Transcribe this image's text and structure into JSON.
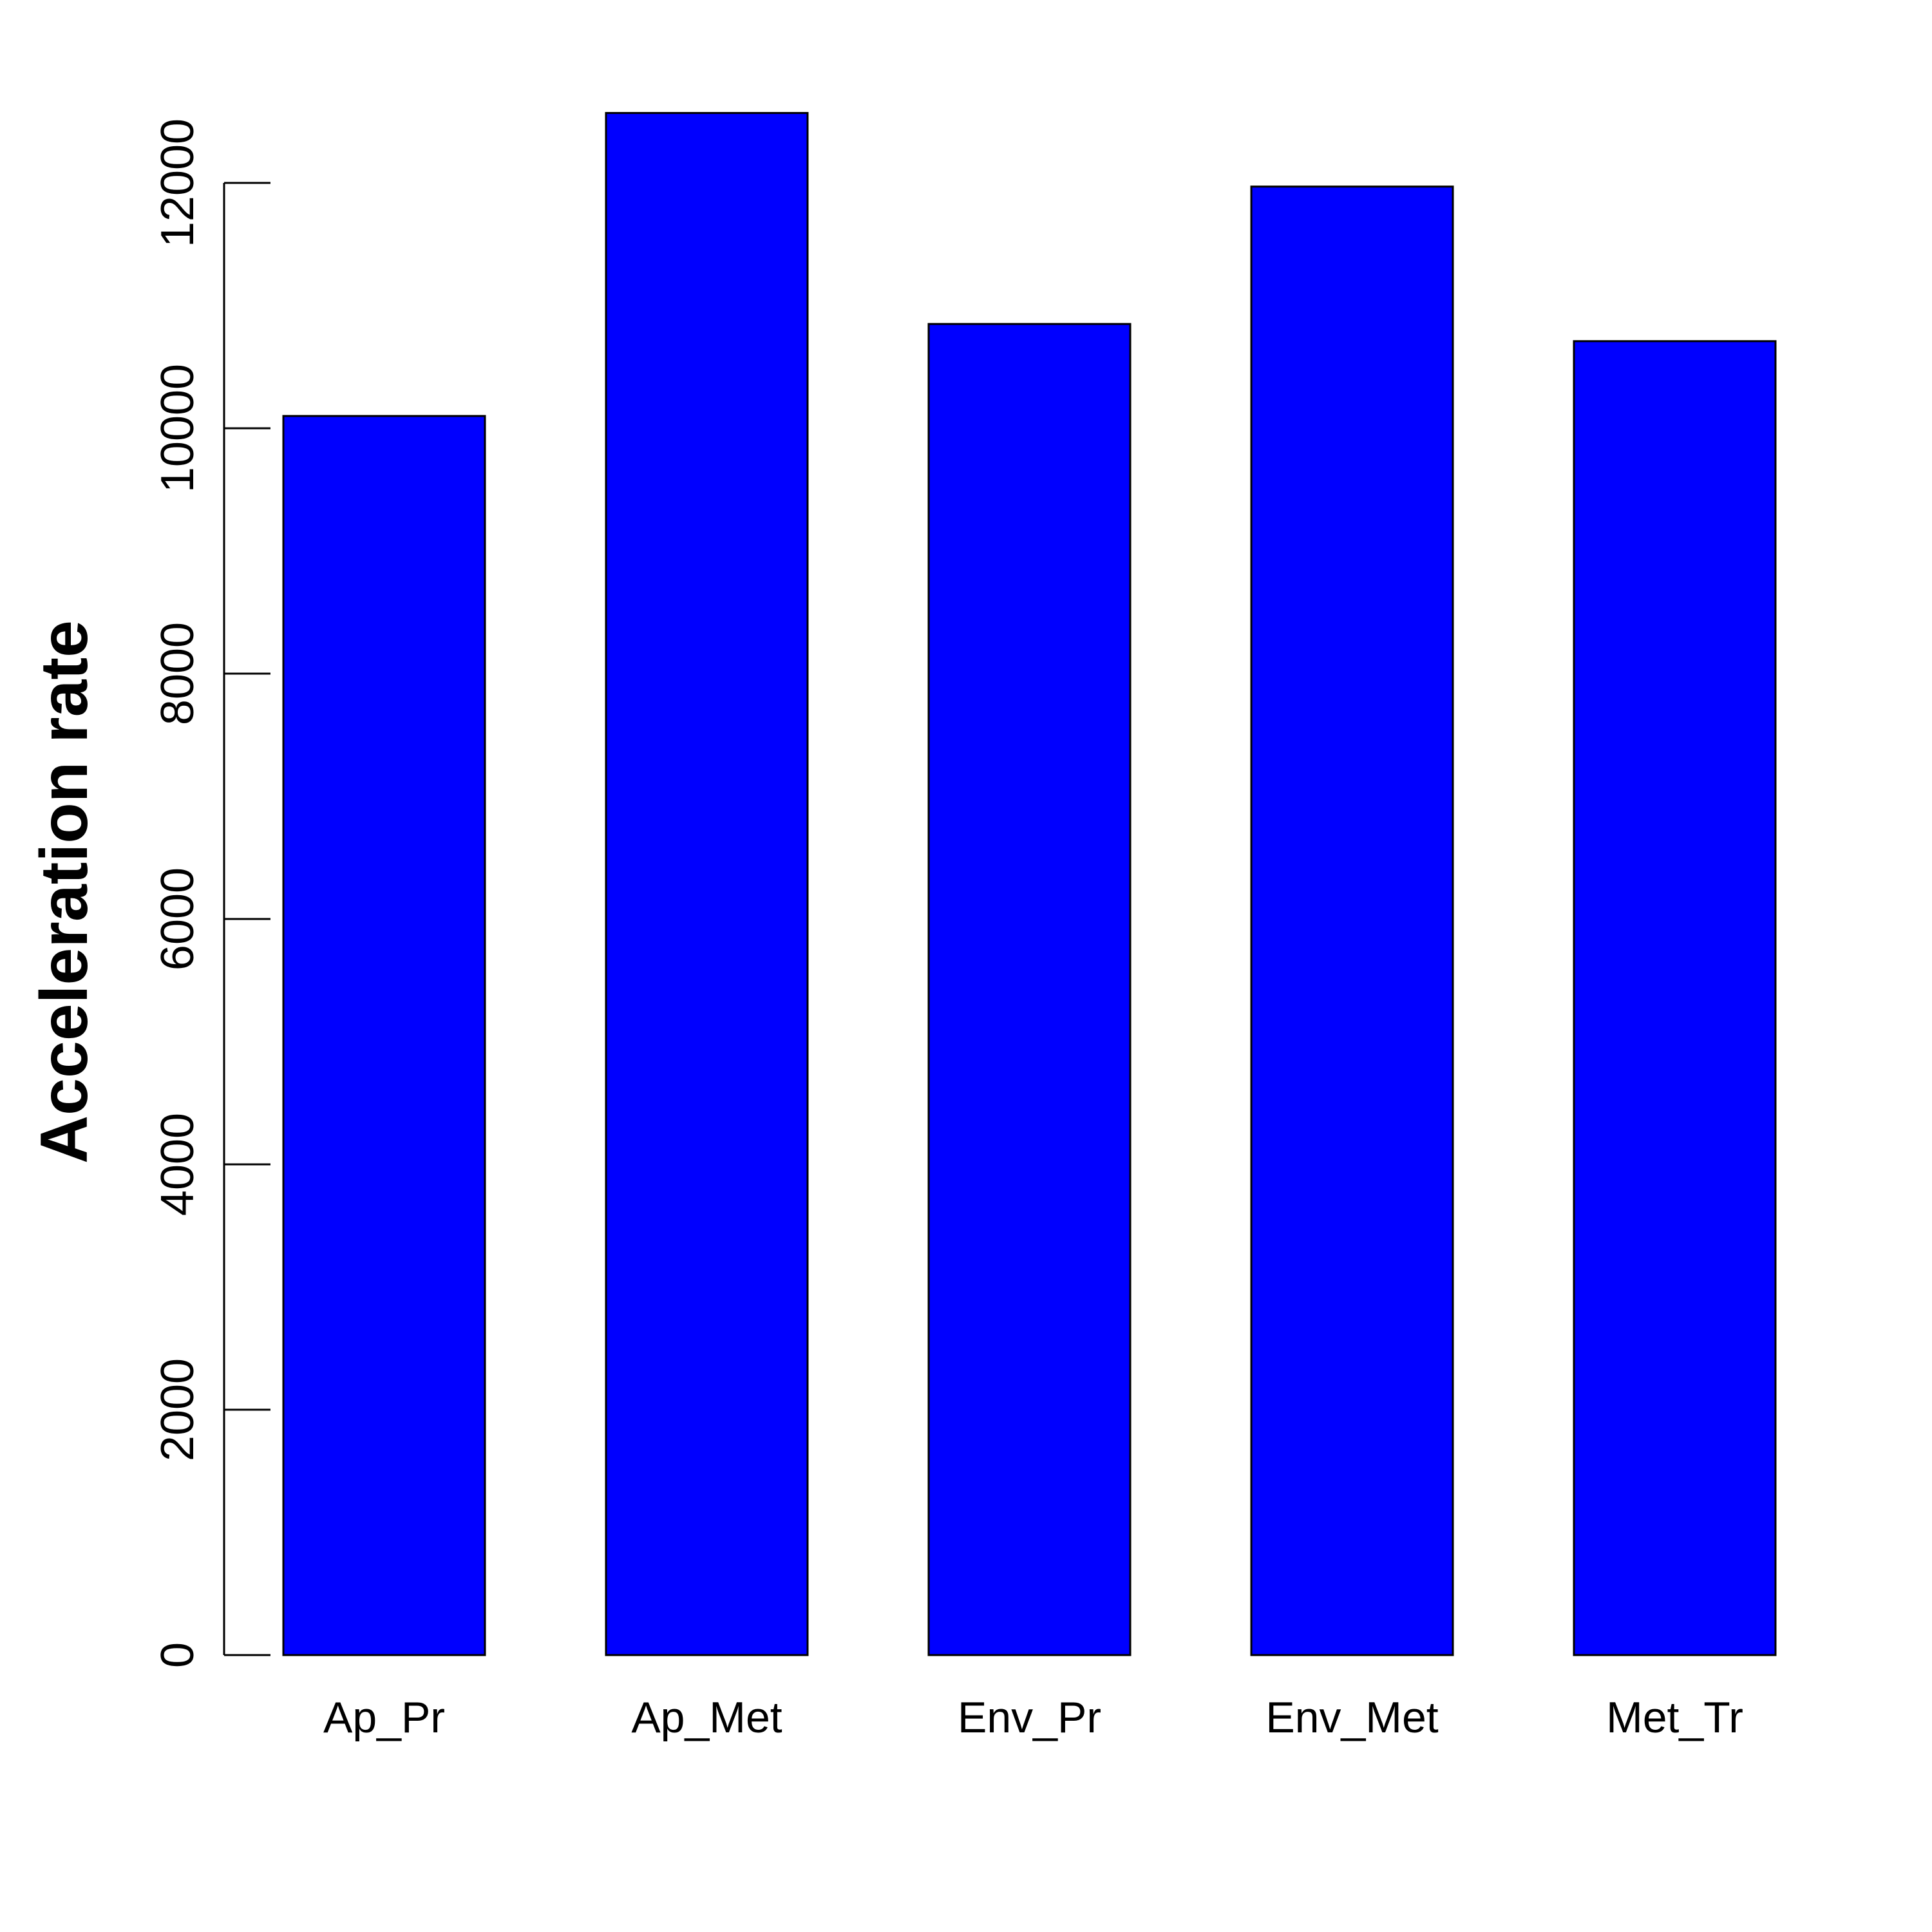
{
  "chart_data": {
    "type": "bar",
    "categories": [
      "Ap_Pr",
      "Ap_Met",
      "Env_Pr",
      "Env_Met",
      "Met_Tr"
    ],
    "values": [
      10100,
      12570,
      10850,
      11970,
      10710
    ],
    "title": "",
    "xlabel": "",
    "ylabel": "Acceleration rate",
    "ylim": [
      0,
      12000
    ],
    "yticks": [
      0,
      2000,
      4000,
      6000,
      8000,
      10000,
      12000
    ],
    "grid": false,
    "legend": "none",
    "bar_color": "#0000ff",
    "bar_edge_color": "#000000"
  }
}
